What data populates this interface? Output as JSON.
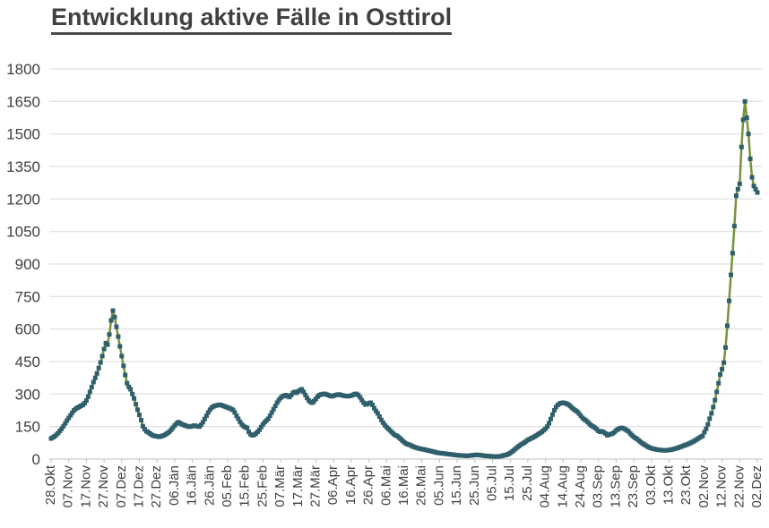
{
  "header": {
    "title": "Entwicklung aktive Fälle in Osttirol"
  },
  "chart_data": {
    "type": "line",
    "title": "Entwicklung aktive Fälle in Osttirol",
    "xlabel": "",
    "ylabel": "",
    "ylim": [
      0,
      1800
    ],
    "y_tick_step": 150,
    "y_ticks": [
      0,
      150,
      300,
      450,
      600,
      750,
      900,
      1050,
      1200,
      1350,
      1500,
      1650,
      1800
    ],
    "grid": "horizontal",
    "legend": "none",
    "marker": "square",
    "x_tick_every_n_points": 10,
    "x_tick_labels": [
      "28.Okt",
      "07.Nov",
      "17.Nov",
      "27.Nov",
      "07.Dez",
      "17.Dez",
      "27.Dez",
      "06.Jän",
      "16.Jän",
      "26.Jän",
      "05.Feb",
      "15.Feb",
      "25.Feb",
      "07.Mär",
      "17.Mär",
      "27.Mär",
      "06.Apr",
      "16.Apr",
      "26.Apr",
      "06.Mai",
      "16.Mai",
      "26.Mai",
      "05.Jun",
      "15.Jun",
      "25.Jun",
      "05.Jul",
      "15.Jul",
      "25.Jul",
      "04.Aug",
      "14.Aug",
      "24.Aug",
      "03.Sep",
      "13.Sep",
      "23.Sep",
      "03.Okt",
      "13.Okt",
      "23.Okt",
      "02.Nov",
      "12.Nov",
      "22.Nov",
      "02.Dez"
    ],
    "values": [
      95,
      100,
      105,
      112,
      120,
      130,
      140,
      152,
      165,
      178,
      190,
      202,
      214,
      225,
      232,
      237,
      241,
      246,
      250,
      258,
      270,
      288,
      310,
      332,
      355,
      375,
      395,
      420,
      446,
      475,
      508,
      535,
      528,
      575,
      640,
      685,
      655,
      610,
      565,
      520,
      475,
      430,
      388,
      350,
      333,
      322,
      300,
      280,
      253,
      228,
      204,
      180,
      152,
      138,
      128,
      124,
      118,
      112,
      108,
      106,
      105,
      103,
      104,
      107,
      110,
      115,
      120,
      126,
      135,
      145,
      155,
      164,
      170,
      166,
      161,
      158,
      155,
      152,
      150,
      150,
      152,
      155,
      153,
      151,
      150,
      158,
      170,
      185,
      200,
      215,
      228,
      238,
      243,
      246,
      248,
      250,
      250,
      247,
      244,
      241,
      238,
      235,
      231,
      227,
      215,
      200,
      186,
      172,
      160,
      152,
      147,
      144,
      125,
      114,
      110,
      112,
      118,
      126,
      135,
      148,
      160,
      170,
      178,
      186,
      200,
      215,
      230,
      245,
      260,
      272,
      282,
      289,
      292,
      295,
      290,
      286,
      295,
      305,
      310,
      306,
      312,
      318,
      322,
      310,
      296,
      282,
      270,
      263,
      260,
      268,
      278,
      288,
      295,
      298,
      300,
      301,
      298,
      295,
      292,
      290,
      292,
      295,
      297,
      298,
      296,
      294,
      292,
      291,
      290,
      291,
      293,
      296,
      300,
      301,
      295,
      285,
      272,
      260,
      252,
      253,
      258,
      260,
      250,
      235,
      222,
      211,
      196,
      181,
      168,
      157,
      148,
      140,
      132,
      124,
      116,
      110,
      107,
      100,
      93,
      85,
      78,
      72,
      68,
      66,
      62,
      58,
      55,
      52,
      50,
      48,
      46,
      45,
      43,
      41,
      39,
      37,
      35,
      33,
      31,
      29,
      28,
      27,
      26,
      25,
      24,
      23,
      22,
      21,
      20,
      19,
      18,
      17,
      17,
      16,
      16,
      15,
      15,
      16,
      17,
      18,
      19,
      20,
      19,
      18,
      17,
      16,
      15,
      14,
      14,
      13,
      13,
      12,
      12,
      12,
      13,
      14,
      16,
      18,
      20,
      23,
      28,
      34,
      40,
      47,
      54,
      60,
      66,
      71,
      76,
      82,
      88,
      92,
      96,
      100,
      105,
      110,
      115,
      120,
      126,
      133,
      140,
      150,
      165,
      185,
      205,
      225,
      240,
      250,
      256,
      259,
      260,
      258,
      255,
      252,
      245,
      237,
      230,
      224,
      219,
      210,
      200,
      190,
      183,
      178,
      170,
      162,
      155,
      150,
      145,
      138,
      130,
      126,
      128,
      124,
      118,
      110,
      113,
      115,
      118,
      124,
      132,
      137,
      141,
      144,
      142,
      138,
      133,
      128,
      118,
      110,
      103,
      97,
      92,
      85,
      78,
      72,
      67,
      62,
      57,
      53,
      50,
      48,
      46,
      44,
      43,
      42,
      41,
      41,
      40,
      41,
      42,
      43,
      45,
      47,
      49,
      52,
      55,
      58,
      61,
      64,
      67,
      70,
      74,
      78,
      82,
      87,
      92,
      98,
      103,
      107,
      124,
      140,
      160,
      186,
      211,
      240,
      272,
      310,
      350,
      390,
      415,
      445,
      515,
      615,
      730,
      850,
      950,
      1075,
      1215,
      1245,
      1270,
      1440,
      1565,
      1650,
      1575,
      1500,
      1385,
      1300,
      1260,
      1245,
      1230
    ],
    "colors": {
      "line": "#77933C",
      "marker": "#2F5F6C",
      "grid": "#D9D9D9",
      "axis_line": "#BFBFBF",
      "axis_text": "#404040",
      "title_text": "#404040"
    }
  }
}
